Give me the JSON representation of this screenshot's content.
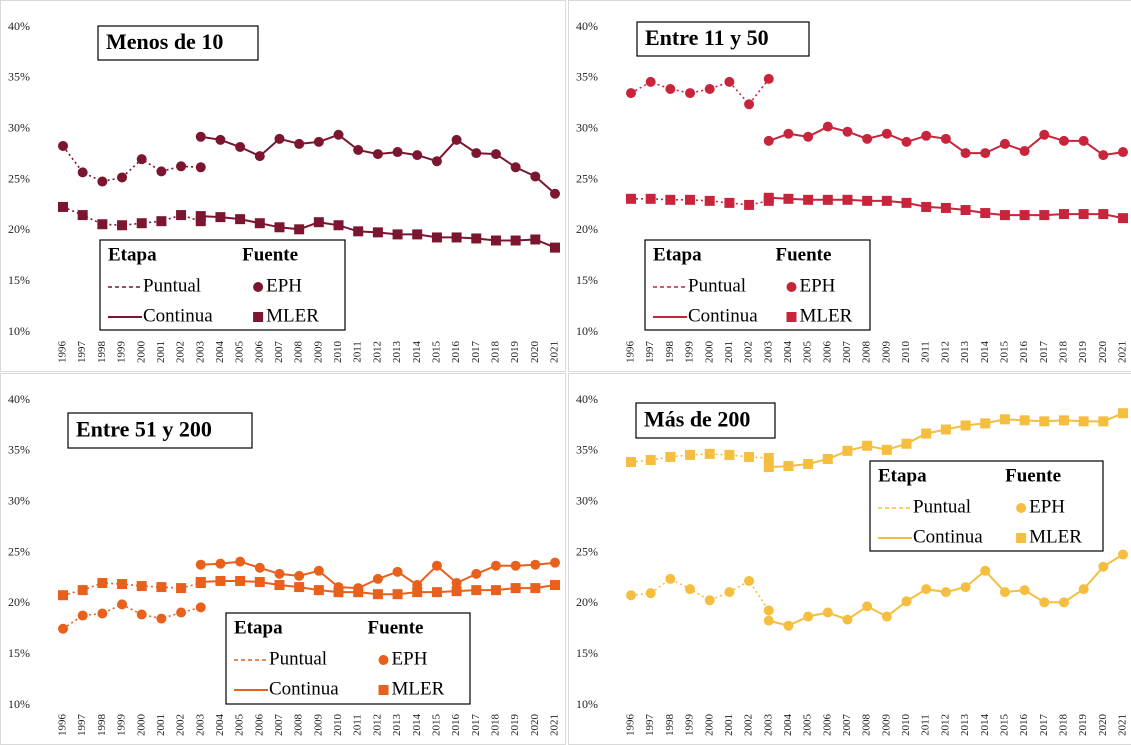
{
  "chart_data": [
    {
      "type": "line",
      "title": "Menos de 10",
      "color": "#7b1530",
      "grid": false,
      "categories": [
        "1996",
        "1997",
        "1998",
        "1999",
        "2000",
        "2001",
        "2002",
        "2003",
        "2004",
        "2005",
        "2006",
        "2007",
        "2008",
        "2009",
        "2010",
        "2011",
        "2012",
        "2013",
        "2014",
        "2015",
        "2016",
        "2017",
        "2018",
        "2019",
        "2020",
        "2021"
      ],
      "ylim": [
        10,
        40
      ],
      "yticks": [
        {
          "value": 10,
          "label": "10%"
        },
        {
          "value": 15,
          "label": "15%"
        },
        {
          "value": 20,
          "label": "20%"
        },
        {
          "value": 25,
          "label": "25%"
        },
        {
          "value": 30,
          "label": "30%"
        },
        {
          "value": 35,
          "label": "35%"
        },
        {
          "value": 40,
          "label": "40%"
        }
      ],
      "legend": {
        "stage_title": "Etapa",
        "source_title": "Fuente"
      },
      "series": [
        {
          "source": "EPH",
          "stage": "Puntual",
          "values": [
            28.3,
            25.7,
            24.8,
            25.2,
            27.0,
            25.8,
            26.3,
            26.2,
            null,
            null,
            null,
            null,
            null,
            null,
            null,
            null,
            null,
            null,
            null,
            null,
            null,
            null,
            null,
            null,
            null,
            null
          ]
        },
        {
          "source": "EPH",
          "stage": "Continua",
          "values": [
            null,
            null,
            null,
            null,
            null,
            null,
            null,
            29.2,
            28.9,
            28.2,
            27.3,
            29.0,
            28.5,
            28.7,
            29.4,
            27.9,
            27.5,
            27.7,
            27.4,
            26.8,
            28.9,
            27.6,
            27.5,
            26.2,
            25.3,
            23.6
          ]
        },
        {
          "source": "MLER",
          "stage": "Puntual",
          "values": [
            22.3,
            21.5,
            20.6,
            20.5,
            20.7,
            20.9,
            21.5,
            20.9,
            null,
            null,
            null,
            null,
            null,
            null,
            null,
            null,
            null,
            null,
            null,
            null,
            null,
            null,
            null,
            null,
            null,
            null
          ]
        },
        {
          "source": "MLER",
          "stage": "Continua",
          "values": [
            null,
            null,
            null,
            null,
            null,
            null,
            null,
            21.4,
            21.3,
            21.1,
            20.7,
            20.3,
            20.1,
            20.8,
            20.5,
            19.9,
            19.8,
            19.6,
            19.6,
            19.3,
            19.3,
            19.2,
            19.0,
            19.0,
            19.1,
            18.3
          ]
        }
      ]
    },
    {
      "type": "line",
      "title": "Entre 11 y 50",
      "color": "#c8243c",
      "grid": false,
      "categories": [
        "1996",
        "1997",
        "1998",
        "1999",
        "2000",
        "2001",
        "2002",
        "2003",
        "2004",
        "2005",
        "2006",
        "2007",
        "2008",
        "2009",
        "2010",
        "2011",
        "2012",
        "2013",
        "2014",
        "2015",
        "2016",
        "2017",
        "2018",
        "2019",
        "2020",
        "2021"
      ],
      "ylim": [
        10,
        40
      ],
      "yticks": [
        {
          "value": 10,
          "label": "10%"
        },
        {
          "value": 15,
          "label": "15%"
        },
        {
          "value": 20,
          "label": "20%"
        },
        {
          "value": 25,
          "label": "25%"
        },
        {
          "value": 30,
          "label": "30%"
        },
        {
          "value": 35,
          "label": "35%"
        },
        {
          "value": 40,
          "label": "40%"
        }
      ],
      "legend": {
        "stage_title": "Etapa",
        "source_title": "Fuente"
      },
      "series": [
        {
          "source": "EPH",
          "stage": "Puntual",
          "values": [
            33.5,
            34.6,
            33.9,
            33.5,
            33.9,
            34.6,
            32.4,
            34.9,
            null,
            null,
            null,
            null,
            null,
            null,
            null,
            null,
            null,
            null,
            null,
            null,
            null,
            null,
            null,
            null,
            null,
            null
          ]
        },
        {
          "source": "EPH",
          "stage": "Continua",
          "values": [
            null,
            null,
            null,
            null,
            null,
            null,
            null,
            28.8,
            29.5,
            29.2,
            30.2,
            29.7,
            29.0,
            29.5,
            28.7,
            29.3,
            29.0,
            27.6,
            27.6,
            28.5,
            27.8,
            29.4,
            28.8,
            28.8,
            27.4,
            27.7
          ]
        },
        {
          "source": "MLER",
          "stage": "Puntual",
          "values": [
            23.1,
            23.1,
            23.0,
            23.0,
            22.9,
            22.7,
            22.5,
            22.9,
            null,
            null,
            null,
            null,
            null,
            null,
            null,
            null,
            null,
            null,
            null,
            null,
            null,
            null,
            null,
            null,
            null,
            null
          ]
        },
        {
          "source": "MLER",
          "stage": "Continua",
          "values": [
            null,
            null,
            null,
            null,
            null,
            null,
            null,
            23.2,
            23.1,
            23.0,
            23.0,
            23.0,
            22.9,
            22.9,
            22.7,
            22.3,
            22.2,
            22.0,
            21.7,
            21.5,
            21.5,
            21.5,
            21.6,
            21.6,
            21.6,
            21.2
          ]
        }
      ]
    },
    {
      "type": "line",
      "title": "Entre 51 y 200",
      "color": "#e8601c",
      "grid": false,
      "categories": [
        "1996",
        "1997",
        "1998",
        "1999",
        "2000",
        "2001",
        "2002",
        "2003",
        "2004",
        "2005",
        "2006",
        "2007",
        "2008",
        "2009",
        "2010",
        "2011",
        "2012",
        "2013",
        "2014",
        "2015",
        "2016",
        "2017",
        "2018",
        "2019",
        "2020",
        "2021"
      ],
      "ylim": [
        10,
        40
      ],
      "yticks": [
        {
          "value": 10,
          "label": "10%"
        },
        {
          "value": 15,
          "label": "15%"
        },
        {
          "value": 20,
          "label": "20%"
        },
        {
          "value": 25,
          "label": "25%"
        },
        {
          "value": 30,
          "label": "30%"
        },
        {
          "value": 35,
          "label": "35%"
        },
        {
          "value": 40,
          "label": "40%"
        }
      ],
      "legend": {
        "stage_title": "Etapa",
        "source_title": "Fuente"
      },
      "series": [
        {
          "source": "EPH",
          "stage": "Puntual",
          "values": [
            17.5,
            18.8,
            19.0,
            19.9,
            18.9,
            18.5,
            19.1,
            19.6,
            null,
            null,
            null,
            null,
            null,
            null,
            null,
            null,
            null,
            null,
            null,
            null,
            null,
            null,
            null,
            null,
            null,
            null
          ]
        },
        {
          "source": "EPH",
          "stage": "Continua",
          "values": [
            null,
            null,
            null,
            null,
            null,
            null,
            null,
            23.8,
            23.9,
            24.1,
            23.5,
            22.9,
            22.7,
            23.2,
            21.6,
            21.5,
            22.4,
            23.1,
            21.8,
            23.7,
            22.0,
            22.9,
            23.7,
            23.7,
            23.8,
            24.0
          ]
        },
        {
          "source": "MLER",
          "stage": "Puntual",
          "values": [
            20.8,
            21.3,
            22.0,
            21.9,
            21.7,
            21.6,
            21.5,
            22.0,
            null,
            null,
            null,
            null,
            null,
            null,
            null,
            null,
            null,
            null,
            null,
            null,
            null,
            null,
            null,
            null,
            null,
            null
          ]
        },
        {
          "source": "MLER",
          "stage": "Continua",
          "values": [
            null,
            null,
            null,
            null,
            null,
            null,
            null,
            22.1,
            22.2,
            22.2,
            22.1,
            21.8,
            21.6,
            21.3,
            21.1,
            21.1,
            20.9,
            20.9,
            21.1,
            21.1,
            21.2,
            21.3,
            21.3,
            21.5,
            21.5,
            21.8
          ]
        }
      ]
    },
    {
      "type": "line",
      "title": "Más de 200",
      "color": "#f5be3e",
      "grid": false,
      "categories": [
        "1996",
        "1997",
        "1998",
        "1999",
        "2000",
        "2001",
        "2002",
        "2003",
        "2004",
        "2005",
        "2006",
        "2007",
        "2008",
        "2009",
        "2010",
        "2011",
        "2012",
        "2013",
        "2014",
        "2015",
        "2016",
        "2017",
        "2018",
        "2019",
        "2020",
        "2021"
      ],
      "ylim": [
        10,
        40
      ],
      "yticks": [
        {
          "value": 10,
          "label": "10%"
        },
        {
          "value": 15,
          "label": "15%"
        },
        {
          "value": 20,
          "label": "20%"
        },
        {
          "value": 25,
          "label": "25%"
        },
        {
          "value": 30,
          "label": "30%"
        },
        {
          "value": 35,
          "label": "35%"
        },
        {
          "value": 40,
          "label": "40%"
        }
      ],
      "legend": {
        "stage_title": "Etapa",
        "source_title": "Fuente"
      },
      "series": [
        {
          "source": "EPH",
          "stage": "Puntual",
          "values": [
            20.8,
            21.0,
            22.4,
            21.4,
            20.3,
            21.1,
            22.2,
            19.3,
            null,
            null,
            null,
            null,
            null,
            null,
            null,
            null,
            null,
            null,
            null,
            null,
            null,
            null,
            null,
            null,
            null,
            null
          ]
        },
        {
          "source": "EPH",
          "stage": "Continua",
          "values": [
            null,
            null,
            null,
            null,
            null,
            null,
            null,
            18.3,
            17.8,
            18.7,
            19.1,
            18.4,
            19.7,
            18.7,
            20.2,
            21.4,
            21.1,
            21.6,
            23.2,
            21.1,
            21.3,
            20.1,
            20.1,
            21.4,
            23.6,
            24.8
          ]
        },
        {
          "source": "MLER",
          "stage": "Puntual",
          "values": [
            33.9,
            34.1,
            34.4,
            34.6,
            34.7,
            34.6,
            34.4,
            34.3,
            null,
            null,
            null,
            null,
            null,
            null,
            null,
            null,
            null,
            null,
            null,
            null,
            null,
            null,
            null,
            null,
            null,
            null
          ]
        },
        {
          "source": "MLER",
          "stage": "Continua",
          "values": [
            null,
            null,
            null,
            null,
            null,
            null,
            null,
            33.4,
            33.5,
            33.7,
            34.2,
            35.0,
            35.5,
            35.1,
            35.7,
            36.7,
            37.1,
            37.5,
            37.7,
            38.1,
            38.0,
            37.9,
            38.0,
            37.9,
            37.9,
            38.7
          ]
        }
      ]
    }
  ]
}
